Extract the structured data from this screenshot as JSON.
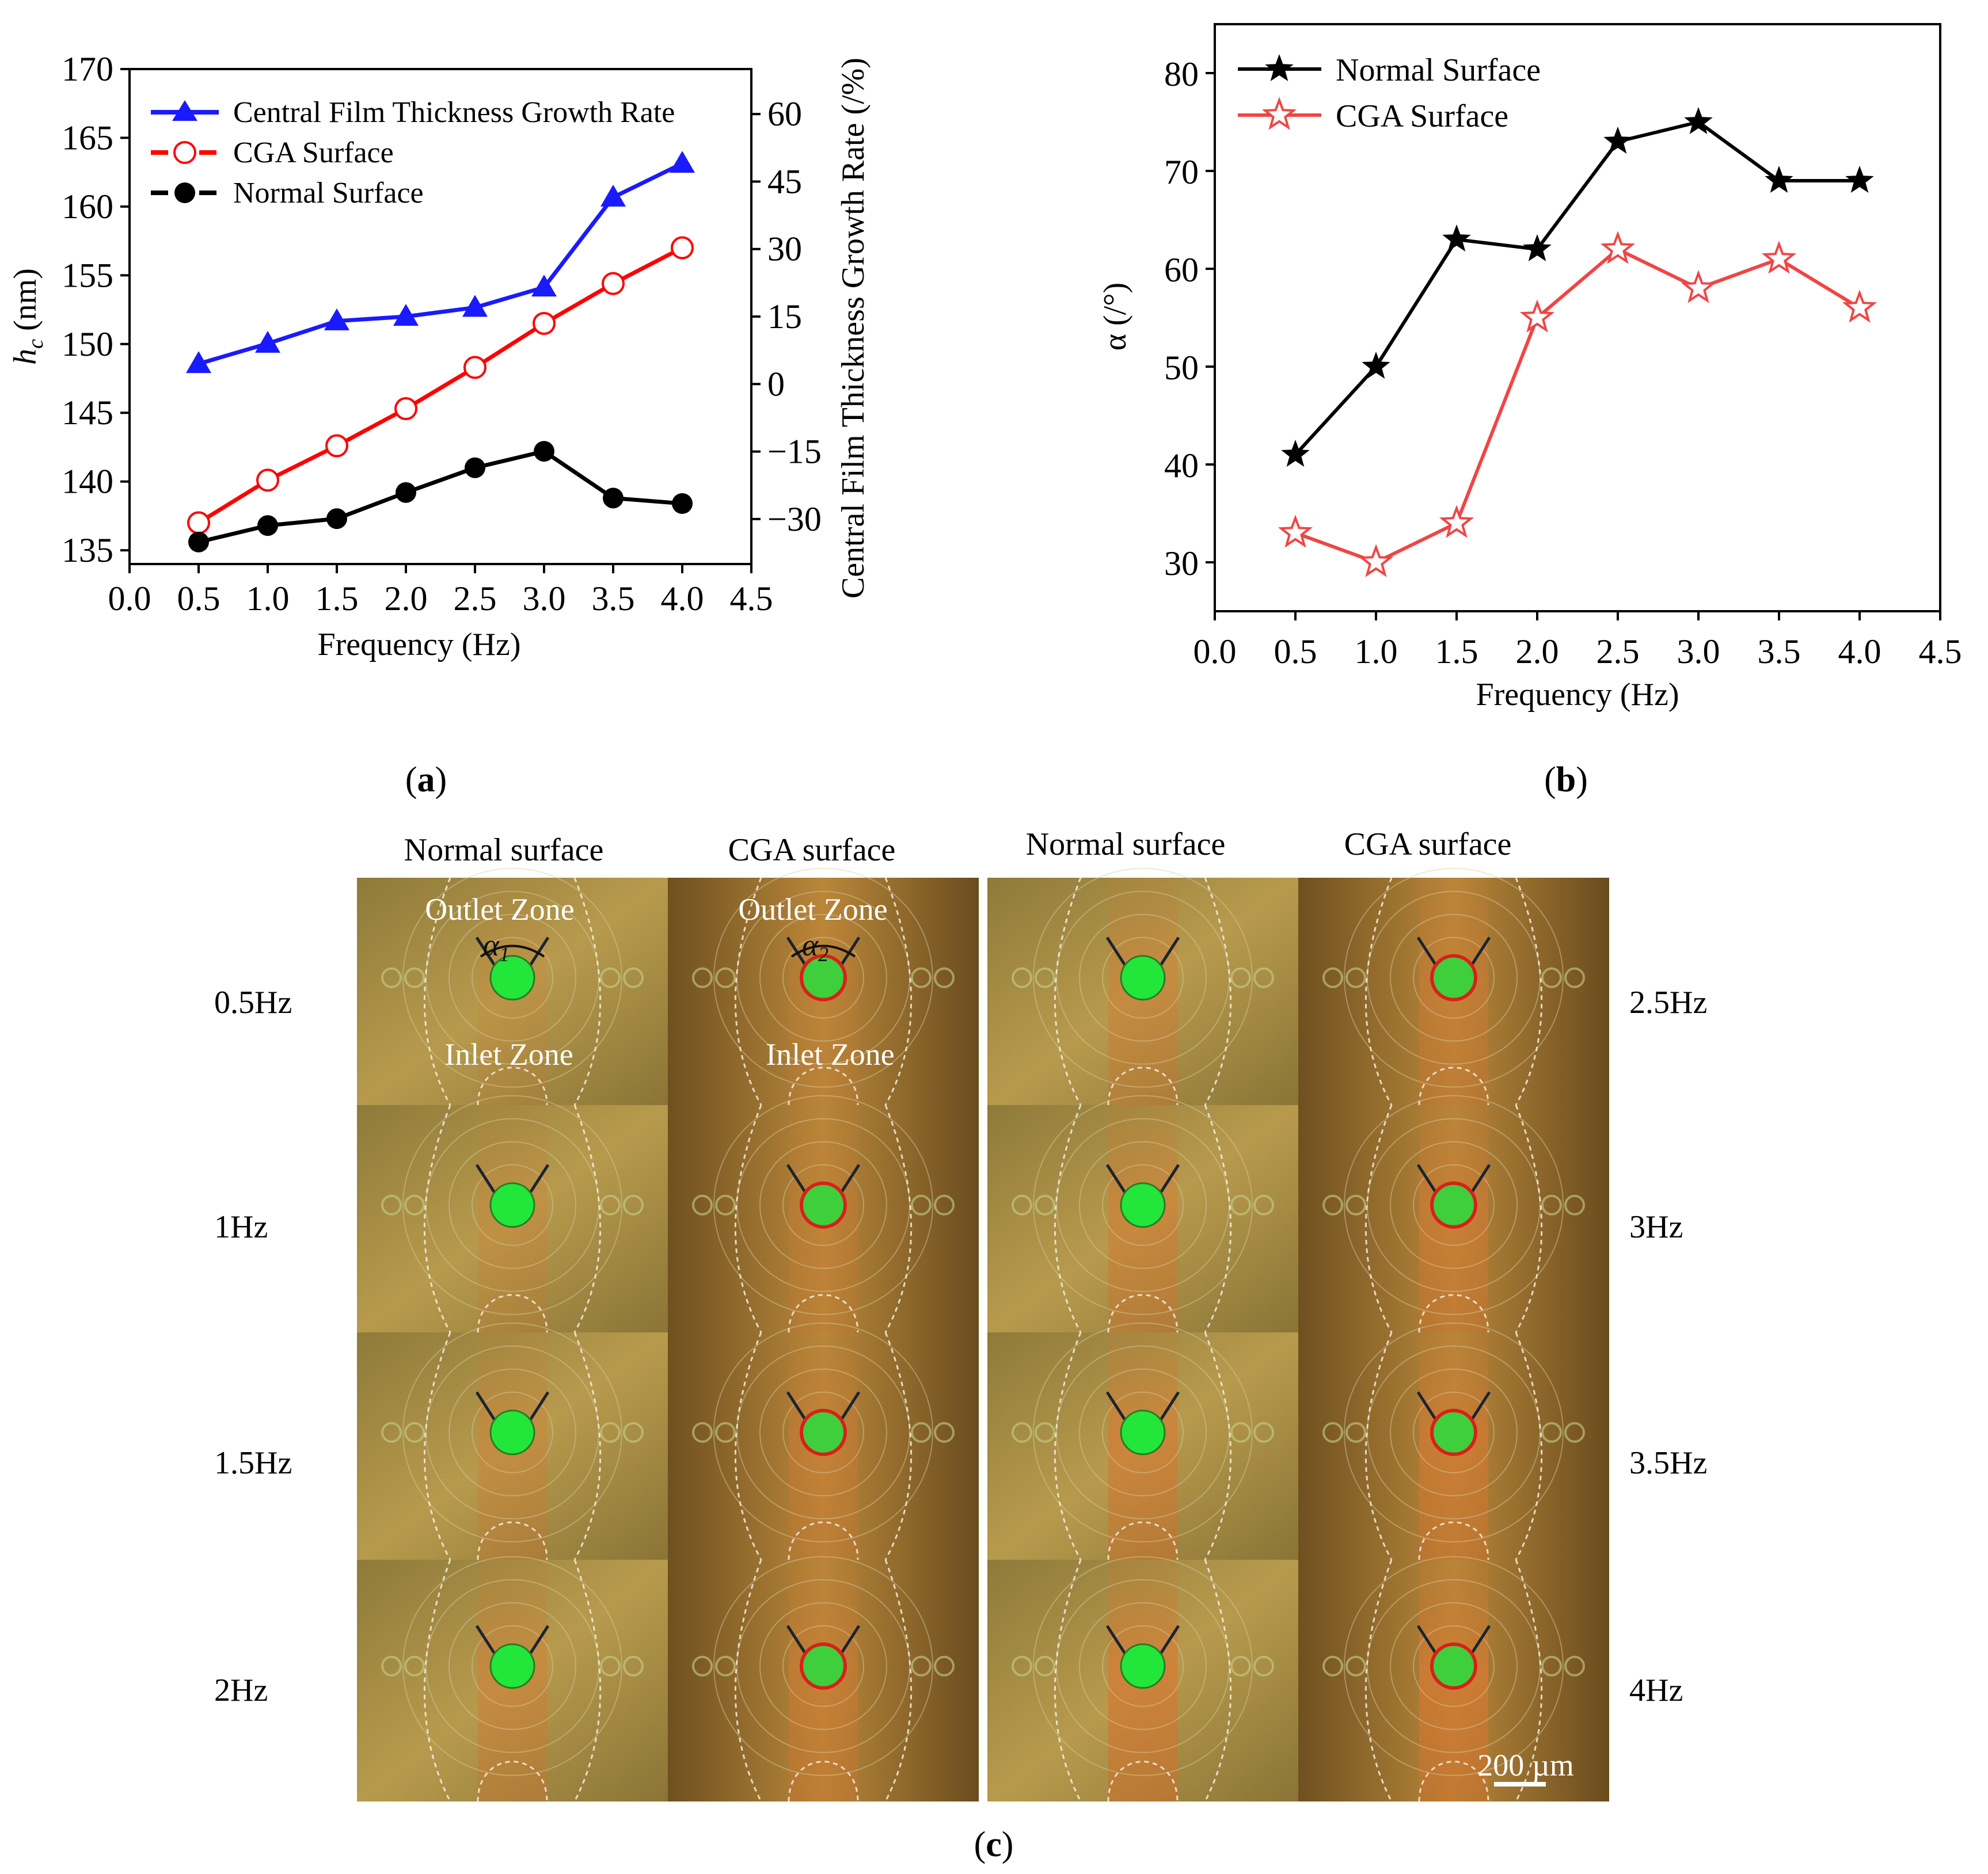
{
  "chart_data": [
    {
      "type": "line",
      "panel_label": "a",
      "x": [
        0.5,
        1.0,
        1.5,
        2.0,
        2.5,
        3.0,
        3.5,
        4.0
      ],
      "xlim": [
        0.0,
        4.5
      ],
      "x_ticks": [
        "0.0",
        "0.5",
        "1.0",
        "1.5",
        "2.0",
        "2.5",
        "3.0",
        "3.5",
        "4.0",
        "4.5"
      ],
      "xlabel": "Frequency (Hz)",
      "ylabel_left_main": "h",
      "ylabel_left_sub": "c",
      "ylabel_left_unit": " (nm)",
      "ylim": [
        134,
        170
      ],
      "y_ticks": [
        "135",
        "140",
        "145",
        "150",
        "155",
        "160",
        "165",
        "170"
      ],
      "ylabel_right": "Central Film Thickness Growth Rate (/%)",
      "y2lim": [
        -40,
        70
      ],
      "y2_ticks": [
        "−30",
        "−15",
        "0",
        "15",
        "30",
        "45",
        "60"
      ],
      "series": [
        {
          "name": "Central Film Thickness Growth Rate",
          "axis": "right",
          "color": "#1a1aff",
          "marker": "triangle",
          "values": [
            4.5,
            9.0,
            14.0,
            15.0,
            17.0,
            21.5,
            41.5,
            49.0
          ]
        },
        {
          "name": "CGA Surface",
          "axis": "left",
          "color": "#ff0000",
          "marker": "open-circle",
          "values": [
            137.0,
            140.1,
            142.6,
            145.3,
            148.3,
            151.5,
            154.4,
            157.0
          ]
        },
        {
          "name": "Normal Surface",
          "axis": "left",
          "color": "#000000",
          "marker": "filled-circle",
          "values": [
            135.6,
            136.8,
            137.3,
            139.2,
            141.0,
            142.2,
            138.8,
            138.4
          ]
        }
      ]
    },
    {
      "type": "line",
      "panel_label": "b",
      "x": [
        0.5,
        1.0,
        1.5,
        2.0,
        2.5,
        3.0,
        3.5,
        4.0
      ],
      "xlim": [
        0.0,
        4.5
      ],
      "x_ticks": [
        "0.0",
        "0.5",
        "1.0",
        "1.5",
        "2.0",
        "2.5",
        "3.0",
        "3.5",
        "4.0",
        "4.5"
      ],
      "xlabel": "Frequency (Hz)",
      "ylabel": "α (/°)",
      "ylim": [
        25,
        85
      ],
      "y_ticks": [
        "30",
        "40",
        "50",
        "60",
        "70",
        "80"
      ],
      "series": [
        {
          "name": "Normal Surface",
          "color": "#000000",
          "marker": "filled-star",
          "values": [
            41,
            50,
            63,
            62,
            73,
            75,
            69,
            69
          ]
        },
        {
          "name": "CGA Surface",
          "color": "#f04545",
          "marker": "open-star",
          "values": [
            33,
            30,
            34,
            55,
            62,
            58,
            61,
            56
          ]
        }
      ]
    }
  ],
  "panel_c": {
    "label": "c",
    "column_headers": [
      "Normal surface",
      "CGA surface",
      "Normal surface",
      "CGA surface"
    ],
    "left_rows": [
      "0.5Hz",
      "1Hz",
      "1.5Hz",
      "2Hz"
    ],
    "right_rows": [
      "2.5Hz",
      "3Hz",
      "3.5Hz",
      "4Hz"
    ],
    "outlet_zone": "Outlet Zone",
    "inlet_zone": "Inlet Zone",
    "alpha1_sym": "α",
    "alpha1_sub": "1",
    "alpha2_sym": "α",
    "alpha2_sub": "2",
    "scale_bar": "200 µm"
  }
}
